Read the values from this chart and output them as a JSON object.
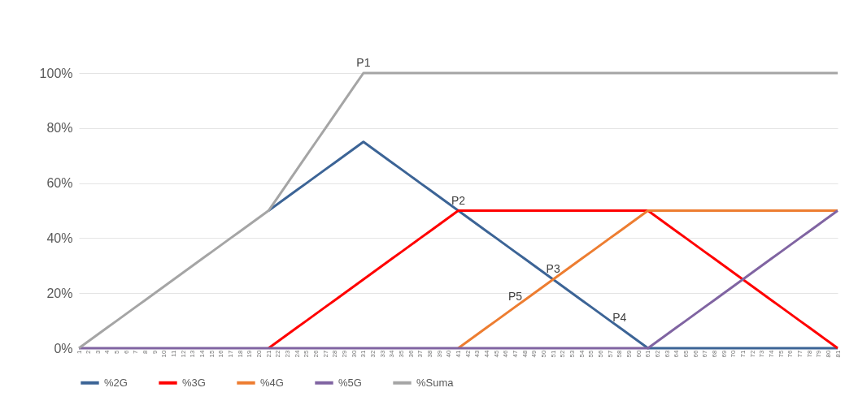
{
  "chart_data": {
    "type": "line",
    "categories": [
      "1",
      "2",
      "3",
      "4",
      "5",
      "6",
      "7",
      "8",
      "9",
      "10",
      "11",
      "12",
      "13",
      "14",
      "15",
      "16",
      "17",
      "18",
      "19",
      "20",
      "21",
      "22",
      "23",
      "24",
      "25",
      "26",
      "27",
      "28",
      "29",
      "30",
      "31",
      "32",
      "33",
      "34",
      "35",
      "36",
      "37",
      "38",
      "39",
      "40",
      "41",
      "42",
      "43",
      "44",
      "45",
      "46",
      "47",
      "48",
      "49",
      "50",
      "51",
      "52",
      "53",
      "54",
      "55",
      "56",
      "57",
      "58",
      "59",
      "60",
      "61",
      "62",
      "63",
      "64",
      "65",
      "66",
      "67",
      "68",
      "69",
      "70",
      "71",
      "72",
      "73",
      "74",
      "75",
      "76",
      "77",
      "78",
      "79",
      "80",
      "81"
    ],
    "series": [
      {
        "name": "%2G",
        "color": "#3c6496",
        "values": [
          null,
          null,
          null,
          null,
          null,
          null,
          null,
          null,
          null,
          null,
          null,
          null,
          null,
          null,
          null,
          null,
          null,
          null,
          null,
          null,
          50,
          52.5,
          55,
          57.5,
          60,
          62.5,
          65,
          67.5,
          70,
          72.5,
          75,
          72.5,
          70,
          67.5,
          65,
          62.5,
          60,
          57.5,
          55,
          52.5,
          50,
          47.5,
          45,
          42.5,
          40,
          37.5,
          35,
          32.5,
          30,
          27.5,
          25,
          22.5,
          20,
          17.5,
          15,
          12.5,
          10,
          7.5,
          5,
          2.5,
          0,
          0,
          0,
          0,
          0,
          0,
          0,
          0,
          0,
          0,
          0,
          0,
          0,
          0,
          0,
          0,
          0,
          0,
          0,
          0,
          0
        ]
      },
      {
        "name": "%3G",
        "color": "#ff0000",
        "values": [
          null,
          null,
          null,
          null,
          null,
          null,
          null,
          null,
          null,
          null,
          null,
          null,
          null,
          null,
          null,
          null,
          null,
          null,
          null,
          null,
          0,
          2.5,
          5,
          7.5,
          10,
          12.5,
          15,
          17.5,
          20,
          22.5,
          25,
          27.5,
          30,
          32.5,
          35,
          37.5,
          40,
          42.5,
          45,
          47.5,
          50,
          50,
          50,
          50,
          50,
          50,
          50,
          50,
          50,
          50,
          50,
          50,
          50,
          50,
          50,
          50,
          50,
          50,
          50,
          50,
          50,
          47.5,
          45,
          42.5,
          40,
          37.5,
          35,
          32.5,
          30,
          27.5,
          25,
          22.5,
          20,
          17.5,
          15,
          12.5,
          10,
          7.5,
          5,
          2.5,
          0
        ]
      },
      {
        "name": "%4G",
        "color": "#ed7d31",
        "values": [
          null,
          null,
          null,
          null,
          null,
          null,
          null,
          null,
          null,
          null,
          null,
          null,
          null,
          null,
          null,
          null,
          null,
          null,
          null,
          null,
          null,
          null,
          null,
          null,
          null,
          null,
          null,
          null,
          null,
          null,
          null,
          null,
          null,
          null,
          null,
          null,
          null,
          null,
          null,
          null,
          0,
          2.5,
          5,
          7.5,
          10,
          12.5,
          15,
          17.5,
          20,
          22.5,
          25,
          27.5,
          30,
          32.5,
          35,
          37.5,
          40,
          42.5,
          45,
          47.5,
          50,
          50,
          50,
          50,
          50,
          50,
          50,
          50,
          50,
          50,
          50,
          50,
          50,
          50,
          50,
          50,
          50,
          50,
          50,
          50,
          50
        ]
      },
      {
        "name": "%5G",
        "color": "#8064a2",
        "values": [
          0,
          0,
          0,
          0,
          0,
          0,
          0,
          0,
          0,
          0,
          0,
          0,
          0,
          0,
          0,
          0,
          0,
          0,
          0,
          0,
          0,
          0,
          0,
          0,
          0,
          0,
          0,
          0,
          0,
          0,
          0,
          0,
          0,
          0,
          0,
          0,
          0,
          0,
          0,
          0,
          0,
          0,
          0,
          0,
          0,
          0,
          0,
          0,
          0,
          0,
          0,
          0,
          0,
          0,
          0,
          0,
          0,
          0,
          0,
          0,
          0,
          2.5,
          5,
          7.5,
          10,
          12.5,
          15,
          17.5,
          20,
          22.5,
          25,
          27.5,
          30,
          32.5,
          35,
          37.5,
          40,
          42.5,
          45,
          47.5,
          50
        ]
      },
      {
        "name": "%Suma",
        "color": "#a5a5a5",
        "values": [
          0,
          2.5,
          5,
          7.5,
          10,
          12.5,
          15,
          17.5,
          20,
          22.5,
          25,
          27.5,
          30,
          32.5,
          35,
          37.5,
          40,
          42.5,
          45,
          47.5,
          50,
          55,
          60,
          65,
          70,
          75,
          80,
          85,
          90,
          95,
          100,
          100,
          100,
          100,
          100,
          100,
          100,
          100,
          100,
          100,
          100,
          100,
          100,
          100,
          100,
          100,
          100,
          100,
          100,
          100,
          100,
          100,
          100,
          100,
          100,
          100,
          100,
          100,
          100,
          100,
          100,
          100,
          100,
          100,
          100,
          100,
          100,
          100,
          100,
          100,
          100,
          100,
          100,
          100,
          100,
          100,
          100,
          100,
          100,
          100,
          100
        ]
      }
    ],
    "ylim": [
      0,
      100
    ],
    "yticks": [
      {
        "value": 0,
        "label": "0%"
      },
      {
        "value": 20,
        "label": "20%"
      },
      {
        "value": 40,
        "label": "40%"
      },
      {
        "value": 60,
        "label": "60%"
      },
      {
        "value": 80,
        "label": "80%"
      },
      {
        "value": 100,
        "label": "100%"
      }
    ],
    "grid": "y",
    "legend": "bottom",
    "marker": "none",
    "line_style": "solid",
    "annotations": [
      {
        "text": "P1",
        "x": "31",
        "y": 100
      },
      {
        "text": "P2",
        "x": "41",
        "y": 50
      },
      {
        "text": "P3",
        "x": "51",
        "y": 25
      },
      {
        "text": "P4",
        "x": "58",
        "y": 7.5
      },
      {
        "text": "P5",
        "x": "47",
        "y": 15
      }
    ]
  }
}
